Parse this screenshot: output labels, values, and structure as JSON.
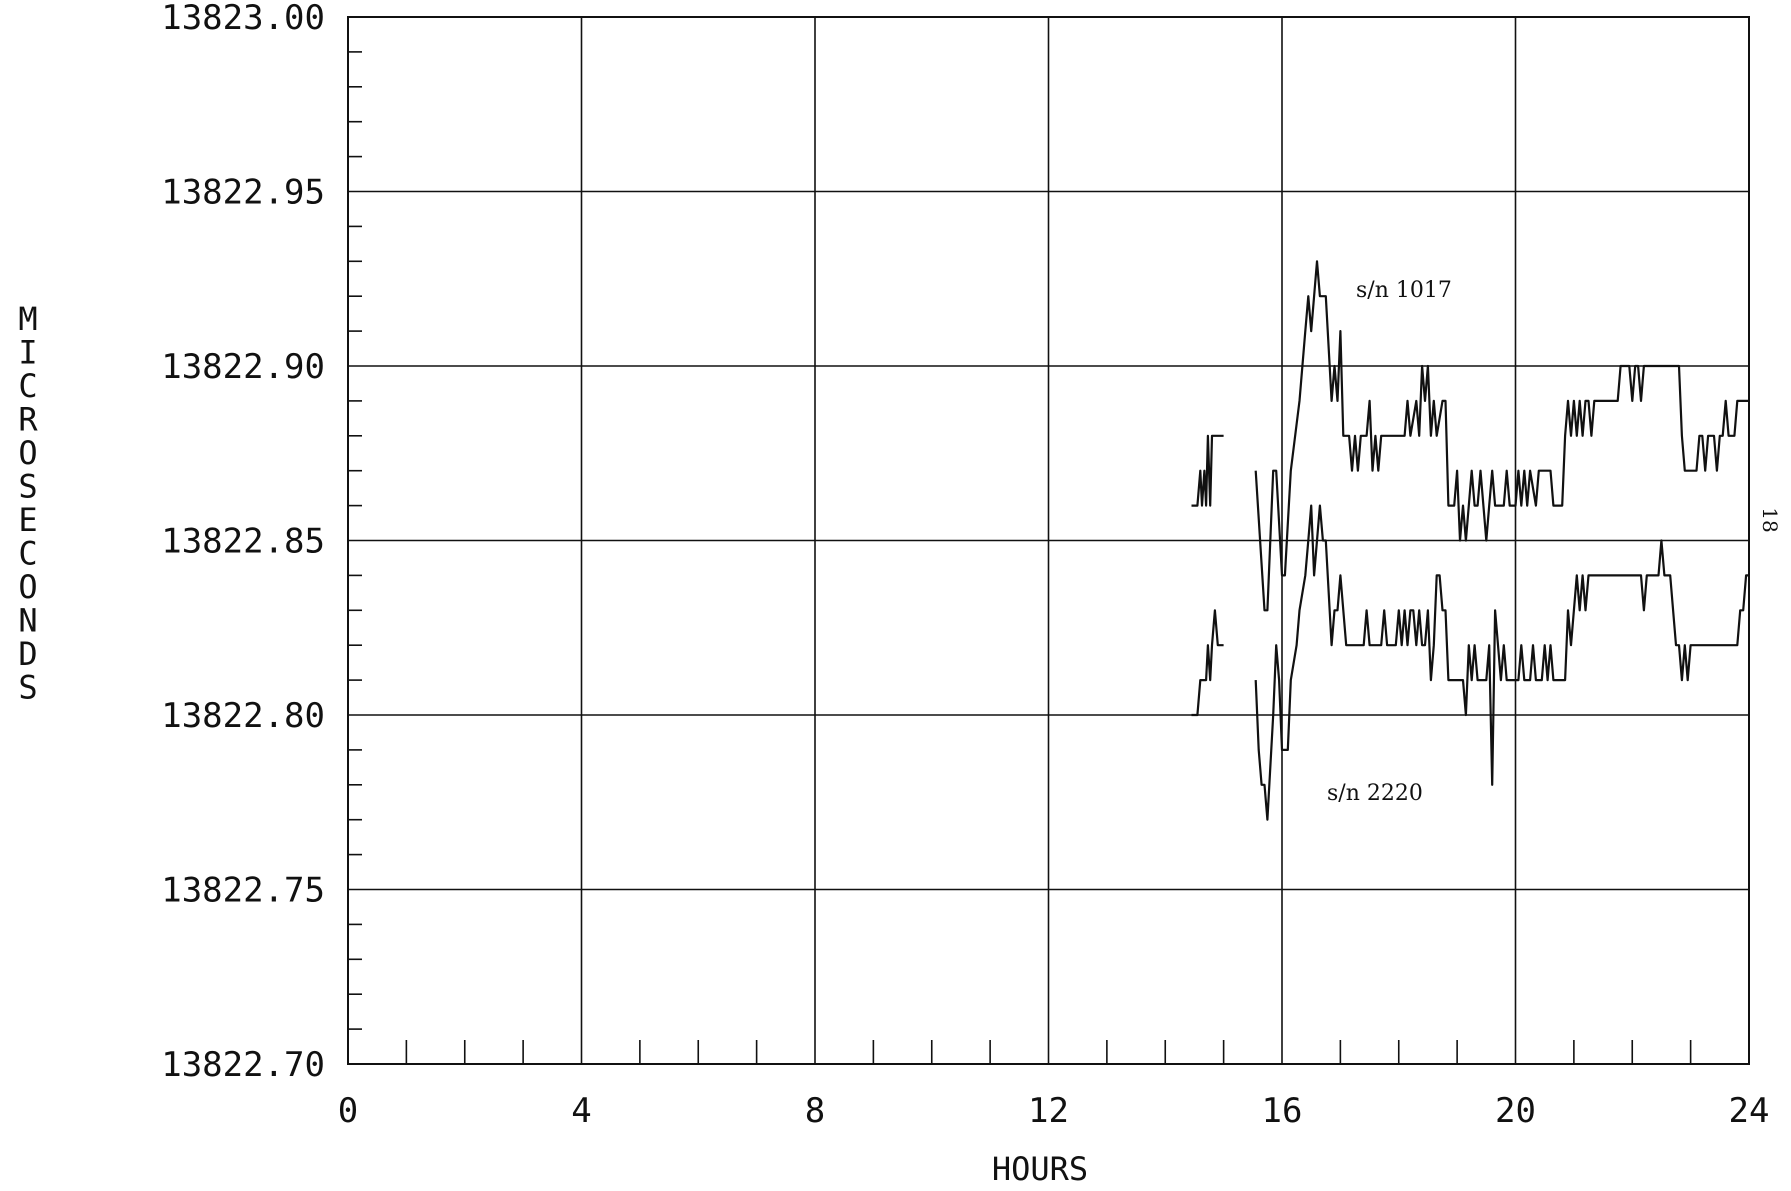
{
  "page_number": "18",
  "chart_data": {
    "type": "line",
    "xlabel": "HOURS",
    "ylabel": "MICROSECONDS",
    "xlim": [
      0,
      24
    ],
    "ylim": [
      13822.7,
      13823.0
    ],
    "x_ticks": [
      0,
      4,
      8,
      12,
      16,
      20,
      24
    ],
    "x_tick_labels": [
      "0",
      "4",
      "8",
      "12",
      "16",
      "20",
      "24"
    ],
    "y_ticks": [
      13822.7,
      13822.75,
      13822.8,
      13822.85,
      13822.9,
      13822.95,
      13823.0
    ],
    "y_tick_labels": [
      "13822.70",
      "13822.75",
      "13822.80",
      "13822.85",
      "13822.90",
      "13822.95",
      "13823.00"
    ],
    "x_minor_step": 1,
    "y_minor_step": 0.01,
    "grid": true,
    "line_color": "#111111",
    "series": [
      {
        "name": "s/n 1017",
        "segments": [
          [
            [
              14.45,
              13822.86
            ],
            [
              14.55,
              13822.86
            ],
            [
              14.6,
              13822.87
            ],
            [
              14.63,
              13822.86
            ],
            [
              14.67,
              13822.87
            ],
            [
              14.7,
              13822.86
            ],
            [
              14.73,
              13822.88
            ],
            [
              14.77,
              13822.86
            ],
            [
              14.8,
              13822.88
            ],
            [
              15.0,
              13822.88
            ]
          ],
          [
            [
              15.55,
              13822.87
            ],
            [
              15.7,
              13822.83
            ],
            [
              15.75,
              13822.83
            ],
            [
              15.85,
              13822.87
            ],
            [
              15.9,
              13822.87
            ],
            [
              16.0,
              13822.84
            ],
            [
              16.05,
              13822.84
            ],
            [
              16.15,
              13822.87
            ],
            [
              16.3,
              13822.89
            ],
            [
              16.4,
              13822.91
            ],
            [
              16.45,
              13822.92
            ],
            [
              16.5,
              13822.91
            ],
            [
              16.55,
              13822.92
            ],
            [
              16.6,
              13822.93
            ],
            [
              16.65,
              13822.92
            ],
            [
              16.75,
              13822.92
            ],
            [
              16.85,
              13822.89
            ],
            [
              16.9,
              13822.9
            ],
            [
              16.95,
              13822.89
            ],
            [
              17.0,
              13822.91
            ],
            [
              17.05,
              13822.88
            ],
            [
              17.15,
              13822.88
            ],
            [
              17.2,
              13822.87
            ],
            [
              17.25,
              13822.88
            ],
            [
              17.3,
              13822.87
            ],
            [
              17.35,
              13822.88
            ],
            [
              17.45,
              13822.88
            ],
            [
              17.5,
              13822.89
            ],
            [
              17.55,
              13822.87
            ],
            [
              17.6,
              13822.88
            ],
            [
              17.65,
              13822.87
            ],
            [
              17.7,
              13822.88
            ],
            [
              18.1,
              13822.88
            ],
            [
              18.15,
              13822.89
            ],
            [
              18.2,
              13822.88
            ],
            [
              18.3,
              13822.89
            ],
            [
              18.35,
              13822.88
            ],
            [
              18.4,
              13822.9
            ],
            [
              18.45,
              13822.89
            ],
            [
              18.5,
              13822.9
            ],
            [
              18.55,
              13822.88
            ],
            [
              18.6,
              13822.89
            ],
            [
              18.65,
              13822.88
            ],
            [
              18.75,
              13822.89
            ],
            [
              18.8,
              13822.89
            ],
            [
              18.85,
              13822.86
            ],
            [
              18.95,
              13822.86
            ],
            [
              19.0,
              13822.87
            ],
            [
              19.05,
              13822.85
            ],
            [
              19.1,
              13822.86
            ],
            [
              19.15,
              13822.85
            ],
            [
              19.2,
              13822.86
            ],
            [
              19.25,
              13822.87
            ],
            [
              19.3,
              13822.86
            ],
            [
              19.35,
              13822.86
            ],
            [
              19.4,
              13822.87
            ],
            [
              19.45,
              13822.86
            ],
            [
              19.5,
              13822.85
            ],
            [
              19.55,
              13822.86
            ],
            [
              19.6,
              13822.87
            ],
            [
              19.65,
              13822.86
            ],
            [
              19.8,
              13822.86
            ],
            [
              19.85,
              13822.87
            ],
            [
              19.9,
              13822.86
            ],
            [
              20.0,
              13822.86
            ],
            [
              20.05,
              13822.87
            ],
            [
              20.1,
              13822.86
            ],
            [
              20.15,
              13822.87
            ],
            [
              20.2,
              13822.86
            ],
            [
              20.25,
              13822.87
            ],
            [
              20.35,
              13822.86
            ],
            [
              20.4,
              13822.87
            ],
            [
              20.6,
              13822.87
            ],
            [
              20.65,
              13822.86
            ],
            [
              20.8,
              13822.86
            ],
            [
              20.85,
              13822.88
            ],
            [
              20.9,
              13822.89
            ],
            [
              20.95,
              13822.88
            ],
            [
              21.0,
              13822.89
            ],
            [
              21.05,
              13822.88
            ],
            [
              21.1,
              13822.89
            ],
            [
              21.15,
              13822.88
            ],
            [
              21.2,
              13822.89
            ],
            [
              21.25,
              13822.89
            ],
            [
              21.3,
              13822.88
            ],
            [
              21.35,
              13822.89
            ],
            [
              21.4,
              13822.89
            ],
            [
              21.75,
              13822.89
            ],
            [
              21.8,
              13822.9
            ],
            [
              21.95,
              13822.9
            ],
            [
              22.0,
              13822.89
            ],
            [
              22.05,
              13822.9
            ],
            [
              22.1,
              13822.9
            ],
            [
              22.15,
              13822.89
            ],
            [
              22.2,
              13822.9
            ],
            [
              22.8,
              13822.9
            ],
            [
              22.85,
              13822.88
            ],
            [
              22.9,
              13822.87
            ],
            [
              23.1,
              13822.87
            ],
            [
              23.15,
              13822.88
            ],
            [
              23.2,
              13822.88
            ],
            [
              23.25,
              13822.87
            ],
            [
              23.3,
              13822.88
            ],
            [
              23.4,
              13822.88
            ],
            [
              23.45,
              13822.87
            ],
            [
              23.5,
              13822.88
            ],
            [
              23.55,
              13822.88
            ],
            [
              23.6,
              13822.89
            ],
            [
              23.65,
              13822.88
            ],
            [
              23.75,
              13822.88
            ],
            [
              23.8,
              13822.89
            ],
            [
              24.0,
              13822.89
            ]
          ]
        ]
      },
      {
        "name": "s/n 2220",
        "segments": [
          [
            [
              14.45,
              13822.8
            ],
            [
              14.55,
              13822.8
            ],
            [
              14.6,
              13822.81
            ],
            [
              14.7,
              13822.81
            ],
            [
              14.73,
              13822.82
            ],
            [
              14.77,
              13822.81
            ],
            [
              14.8,
              13822.82
            ],
            [
              14.85,
              13822.83
            ],
            [
              14.9,
              13822.82
            ],
            [
              15.0,
              13822.82
            ]
          ],
          [
            [
              15.55,
              13822.81
            ],
            [
              15.6,
              13822.79
            ],
            [
              15.65,
              13822.78
            ],
            [
              15.7,
              13822.78
            ],
            [
              15.75,
              13822.77
            ],
            [
              15.85,
              13822.8
            ],
            [
              15.9,
              13822.82
            ],
            [
              15.95,
              13822.81
            ],
            [
              16.0,
              13822.79
            ],
            [
              16.1,
              13822.79
            ],
            [
              16.15,
              13822.81
            ],
            [
              16.25,
              13822.82
            ],
            [
              16.3,
              13822.83
            ],
            [
              16.4,
              13822.84
            ],
            [
              16.45,
              13822.85
            ],
            [
              16.5,
              13822.86
            ],
            [
              16.55,
              13822.84
            ],
            [
              16.6,
              13822.85
            ],
            [
              16.65,
              13822.86
            ],
            [
              16.7,
              13822.85
            ],
            [
              16.75,
              13822.85
            ],
            [
              16.85,
              13822.82
            ],
            [
              16.9,
              13822.83
            ],
            [
              16.95,
              13822.83
            ],
            [
              17.0,
              13822.84
            ],
            [
              17.05,
              13822.83
            ],
            [
              17.1,
              13822.82
            ],
            [
              17.4,
              13822.82
            ],
            [
              17.45,
              13822.83
            ],
            [
              17.5,
              13822.82
            ],
            [
              17.7,
              13822.82
            ],
            [
              17.75,
              13822.83
            ],
            [
              17.8,
              13822.82
            ],
            [
              17.95,
              13822.82
            ],
            [
              18.0,
              13822.83
            ],
            [
              18.05,
              13822.82
            ],
            [
              18.1,
              13822.83
            ],
            [
              18.15,
              13822.82
            ],
            [
              18.2,
              13822.83
            ],
            [
              18.25,
              13822.83
            ],
            [
              18.3,
              13822.82
            ],
            [
              18.35,
              13822.83
            ],
            [
              18.4,
              13822.82
            ],
            [
              18.45,
              13822.82
            ],
            [
              18.5,
              13822.83
            ],
            [
              18.55,
              13822.81
            ],
            [
              18.6,
              13822.82
            ],
            [
              18.65,
              13822.84
            ],
            [
              18.7,
              13822.84
            ],
            [
              18.75,
              13822.83
            ],
            [
              18.8,
              13822.83
            ],
            [
              18.85,
              13822.81
            ],
            [
              19.1,
              13822.81
            ],
            [
              19.15,
              13822.8
            ],
            [
              19.2,
              13822.82
            ],
            [
              19.25,
              13822.81
            ],
            [
              19.3,
              13822.82
            ],
            [
              19.35,
              13822.81
            ],
            [
              19.5,
              13822.81
            ],
            [
              19.55,
              13822.82
            ],
            [
              19.6,
              13822.78
            ],
            [
              19.65,
              13822.83
            ],
            [
              19.7,
              13822.82
            ],
            [
              19.75,
              13822.81
            ],
            [
              19.8,
              13822.82
            ],
            [
              19.85,
              13822.81
            ],
            [
              20.05,
              13822.81
            ],
            [
              20.1,
              13822.82
            ],
            [
              20.15,
              13822.81
            ],
            [
              20.25,
              13822.81
            ],
            [
              20.3,
              13822.82
            ],
            [
              20.35,
              13822.81
            ],
            [
              20.45,
              13822.81
            ],
            [
              20.5,
              13822.82
            ],
            [
              20.55,
              13822.81
            ],
            [
              20.6,
              13822.82
            ],
            [
              20.65,
              13822.81
            ],
            [
              20.85,
              13822.81
            ],
            [
              20.9,
              13822.83
            ],
            [
              20.95,
              13822.82
            ],
            [
              21.0,
              13822.83
            ],
            [
              21.05,
              13822.84
            ],
            [
              21.1,
              13822.83
            ],
            [
              21.15,
              13822.84
            ],
            [
              21.2,
              13822.83
            ],
            [
              21.25,
              13822.84
            ],
            [
              21.3,
              13822.84
            ],
            [
              21.85,
              13822.84
            ],
            [
              22.15,
              13822.84
            ],
            [
              22.2,
              13822.83
            ],
            [
              22.25,
              13822.84
            ],
            [
              22.45,
              13822.84
            ],
            [
              22.5,
              13822.85
            ],
            [
              22.55,
              13822.84
            ],
            [
              22.65,
              13822.84
            ],
            [
              22.7,
              13822.83
            ],
            [
              22.75,
              13822.82
            ],
            [
              22.8,
              13822.82
            ],
            [
              22.85,
              13822.81
            ],
            [
              22.9,
              13822.82
            ],
            [
              22.95,
              13822.81
            ],
            [
              23.0,
              13822.82
            ],
            [
              23.8,
              13822.82
            ],
            [
              23.85,
              13822.83
            ],
            [
              23.9,
              13822.83
            ],
            [
              23.95,
              13822.84
            ],
            [
              24.0,
              13822.84
            ]
          ]
        ]
      }
    ]
  }
}
